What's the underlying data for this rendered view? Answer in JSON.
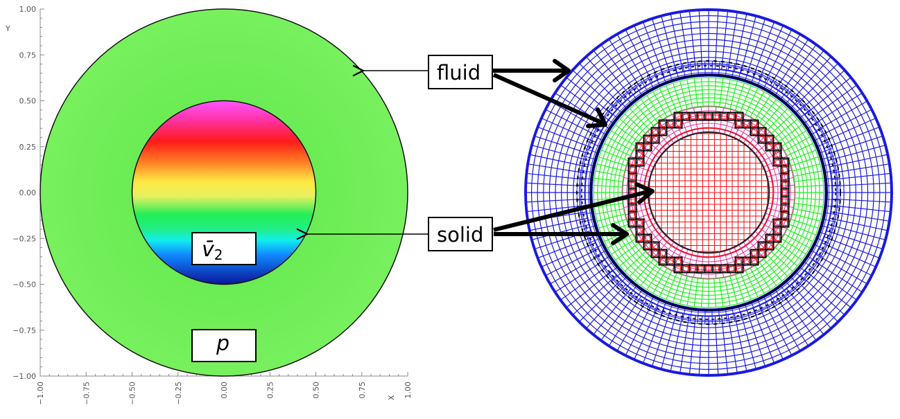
{
  "plot": {
    "x_axis_label": "X",
    "y_axis_label": "Y",
    "xlim": [
      -1.0,
      1.0
    ],
    "ylim": [
      -1.0,
      1.0
    ],
    "x_ticks": [
      "−1.00",
      "−0.75",
      "−0.50",
      "−0.25",
      "0.00",
      "0.25",
      "0.50",
      "0.75",
      "1.00"
    ],
    "y_ticks": [
      "−1.00",
      "−0.75",
      "−0.50",
      "−0.25",
      "0.00",
      "0.25",
      "0.50",
      "0.75",
      "1.00"
    ],
    "outer_radius": 1.0,
    "inner_radius": 0.5,
    "colors": {
      "fluid": "#6ff05a",
      "solid_top": "#ff44ff",
      "solid_red": "#ff1a1a",
      "solid_yellow": "#ffee44",
      "solid_green": "#22ee55",
      "solid_cyan": "#11eeee",
      "solid_blue": "#0a1ab0"
    }
  },
  "labels": {
    "velocity_base": "v̄",
    "velocity_subscript": "2",
    "pressure": "p",
    "fluid": "fluid",
    "solid": "solid"
  },
  "mesh": {
    "colors": {
      "outer_ring": "#1a1adf",
      "dark_band": "#000055",
      "green_ring": "#22ee22",
      "pink_ring": "#dd3399",
      "inner_core": "#ee1111",
      "black_outline": "#000000"
    }
  }
}
